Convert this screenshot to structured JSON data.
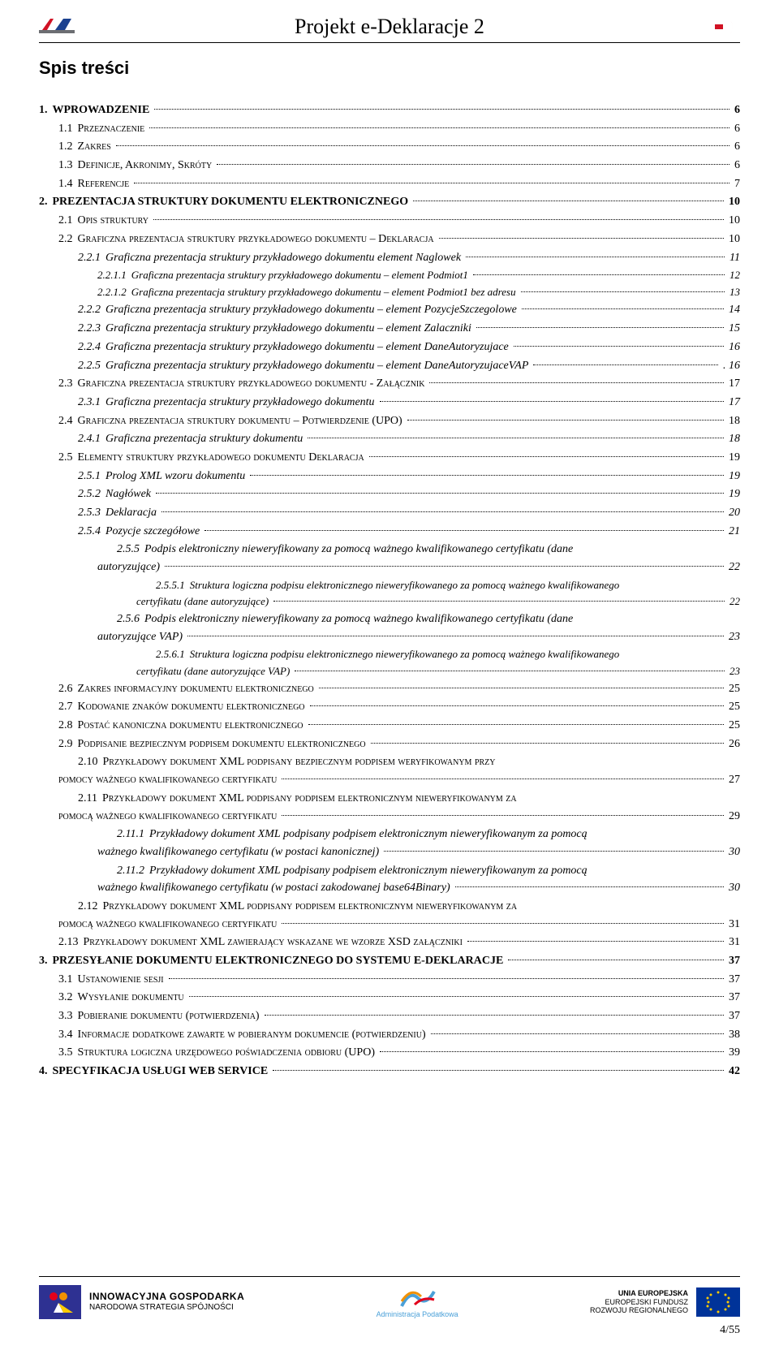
{
  "header": {
    "title": "Projekt e-Deklaracje 2",
    "logo_left_colors": [
      "#d11224",
      "#6c6e72",
      "#1b418f"
    ],
    "logo_right_colors": [
      "#d11224",
      "#ffffff"
    ]
  },
  "toc_heading": "Spis treści",
  "footer": {
    "page": "4/55",
    "ig": {
      "l1": "INNOWACYJNA GOSPODARKA",
      "l2": "NARODOWA STRATEGIA SPÓJNOŚCI"
    },
    "center_caption": "Administracja Podatkowa",
    "eu": {
      "l1": "UNIA EUROPEJSKA",
      "l2": "EUROPEJSKI FUNDUSZ",
      "l3": "ROZWOJU REGIONALNEGO"
    },
    "ig_colors": [
      "#e3001b",
      "#f29100",
      "#2e3192",
      "#ffffff"
    ],
    "eu_flag_bg": "#003399",
    "eu_flag_star": "#ffcc00",
    "center_colors": [
      "#4aa0d8",
      "#f29100",
      "#e3001b"
    ]
  },
  "toc": [
    {
      "lvl": 1,
      "num": "1.",
      "txt": "WPROWADZENIE",
      "pg": "6"
    },
    {
      "lvl": 2,
      "num": "1.1",
      "txt": "Przeznaczenie",
      "pg": "6"
    },
    {
      "lvl": 2,
      "num": "1.2",
      "txt": "Zakres",
      "pg": "6"
    },
    {
      "lvl": 2,
      "num": "1.3",
      "txt": "Definicje, Akronimy, Skróty",
      "pg": "6"
    },
    {
      "lvl": 2,
      "num": "1.4",
      "txt": "Referencje",
      "pg": "7"
    },
    {
      "lvl": 1,
      "num": "2.",
      "txt": "PREZENTACJA STRUKTURY DOKUMENTU ELEKTRONICZNEGO",
      "pg": "10"
    },
    {
      "lvl": 2,
      "num": "2.1",
      "txt": "Opis struktury",
      "pg": "10"
    },
    {
      "lvl": 2,
      "num": "2.2",
      "txt": "Graficzna prezentacja struktury przykładowego dokumentu – Deklaracja",
      "pg": "10"
    },
    {
      "lvl": 3,
      "num": "2.2.1",
      "txt": "Graficzna prezentacja struktury przykładowego dokumentu element Naglowek",
      "pg": "11"
    },
    {
      "lvl": 4,
      "num": "2.2.1.1",
      "txt": "Graficzna prezentacja struktury przykładowego dokumentu – element Podmiot1",
      "pg": "12"
    },
    {
      "lvl": 4,
      "num": "2.2.1.2",
      "txt": "Graficzna prezentacja struktury przykładowego dokumentu – element Podmiot1 bez adresu",
      "pg": "13"
    },
    {
      "lvl": 3,
      "num": "2.2.2",
      "txt": "Graficzna prezentacja struktury przykładowego dokumentu – element PozycjeSzczegolowe",
      "pg": "14"
    },
    {
      "lvl": 3,
      "num": "2.2.3",
      "txt": "Graficzna prezentacja struktury przykładowego dokumentu – element Zalaczniki",
      "pg": "15"
    },
    {
      "lvl": 3,
      "num": "2.2.4",
      "txt": "Graficzna prezentacja struktury przykładowego dokumentu – element DaneAutoryzujace",
      "pg": "16"
    },
    {
      "lvl": 3,
      "num": "2.2.5",
      "txt": "Graficzna prezentacja struktury przykładowego dokumentu – element DaneAutoryzujaceVAP",
      "pg": ". 16"
    },
    {
      "lvl": 2,
      "num": "2.3",
      "txt": "Graficzna prezentacja struktury przykładowego dokumentu - Załącznik",
      "pg": "17"
    },
    {
      "lvl": 3,
      "num": "2.3.1",
      "txt": "Graficzna prezentacja struktury przykładowego dokumentu",
      "pg": "17"
    },
    {
      "lvl": 2,
      "num": "2.4",
      "txt": "Graficzna prezentacja struktury dokumentu – Potwierdzenie (UPO)",
      "pg": "18"
    },
    {
      "lvl": 3,
      "num": "2.4.1",
      "txt": "Graficzna prezentacja struktury dokumentu",
      "pg": "18"
    },
    {
      "lvl": 2,
      "num": "2.5",
      "txt": "Elementy struktury przykładowego dokumentu Deklaracja",
      "pg": "19"
    },
    {
      "lvl": 3,
      "num": "2.5.1",
      "txt": "Prolog XML wzoru dokumentu",
      "pg": "19"
    },
    {
      "lvl": 3,
      "num": "2.5.2",
      "txt": "Nagłówek",
      "pg": "19"
    },
    {
      "lvl": 3,
      "num": "2.5.3",
      "txt": "Deklaracja",
      "pg": "20"
    },
    {
      "lvl": 3,
      "num": "2.5.4",
      "txt": "Pozycje szczegółowe",
      "pg": "21"
    },
    {
      "lvl": 3,
      "num": "2.5.5",
      "txt": "Podpis elektroniczny nieweryfikowany za pomocą ważnego kwalifikowanego certyfikatu (dane",
      "wrap_tail": "autoryzujące)",
      "pg": "22"
    },
    {
      "lvl": 4,
      "num": "2.5.5.1",
      "txt": "Struktura logiczna podpisu elektronicznego nieweryfikowanego za pomocą ważnego kwalifikowanego",
      "wrap_tail": "certyfikatu (dane autoryzujące)",
      "pg": "22"
    },
    {
      "lvl": 3,
      "num": "2.5.6",
      "txt": "Podpis elektroniczny nieweryfikowany za pomocą ważnego kwalifikowanego certyfikatu (dane",
      "wrap_tail": "autoryzujące VAP)",
      "pg": "23"
    },
    {
      "lvl": 4,
      "num": "2.5.6.1",
      "txt": "Struktura logiczna podpisu elektronicznego nieweryfikowanego za pomocą ważnego kwalifikowanego",
      "wrap_tail": "certyfikatu (dane autoryzujące VAP)",
      "pg": "23"
    },
    {
      "lvl": 2,
      "num": "2.6",
      "txt": "Zakres informacyjny dokumentu elektronicznego",
      "pg": "25"
    },
    {
      "lvl": 2,
      "num": "2.7",
      "txt": "Kodowanie znaków dokumentu elektronicznego",
      "pg": "25"
    },
    {
      "lvl": 2,
      "num": "2.8",
      "txt": "Postać kanoniczna dokumentu elektronicznego",
      "pg": "25"
    },
    {
      "lvl": 2,
      "num": "2.9",
      "txt": "Podpisanie bezpiecznym podpisem dokumentu elektronicznego",
      "pg": "26"
    },
    {
      "lvl": 2,
      "num": "2.10",
      "txt": "Przykładowy dokument XML podpisany bezpiecznym podpisem weryfikowanym przy",
      "wrap_tail": "pomocy ważnego kwalifikowanego certyfikatu",
      "pg": "27"
    },
    {
      "lvl": 2,
      "num": "2.11",
      "txt": "Przykładowy dokument XML podpisany podpisem elektronicznym nieweryfikowanym za",
      "wrap_tail": "pomocą ważnego kwalifikowanego certyfikatu",
      "pg": "29"
    },
    {
      "lvl": 3,
      "num": "2.11.1",
      "txt": "Przykładowy dokument XML podpisany podpisem elektronicznym nieweryfikowanym za pomocą",
      "wrap_tail": "ważnego kwalifikowanego certyfikatu (w postaci kanonicznej)",
      "pg": "30"
    },
    {
      "lvl": 3,
      "num": "2.11.2",
      "txt": "Przykładowy dokument XML podpisany podpisem elektronicznym nieweryfikowanym za pomocą",
      "wrap_tail": "ważnego kwalifikowanego certyfikatu (w postaci zakodowanej base64Binary)",
      "pg": "30"
    },
    {
      "lvl": 2,
      "num": "2.12",
      "txt": "Przykładowy dokument XML podpisany podpisem elektronicznym nieweryfikowanym za",
      "wrap_tail": "pomocą ważnego kwalifikowanego certyfikatu",
      "pg": "31"
    },
    {
      "lvl": 2,
      "num": "2.13",
      "txt": "Przykładowy dokument XML zawierający wskazane we wzorze XSD załączniki",
      "pg": "31"
    },
    {
      "lvl": 1,
      "num": "3.",
      "txt": "PRZESYŁANIE DOKUMENTU ELEKTRONICZNEGO DO SYSTEMU E-DEKLARACJE",
      "pg": "37"
    },
    {
      "lvl": 2,
      "num": "3.1",
      "txt": "Ustanowienie sesji",
      "pg": "37"
    },
    {
      "lvl": 2,
      "num": "3.2",
      "txt": "Wysyłanie dokumentu",
      "pg": "37"
    },
    {
      "lvl": 2,
      "num": "3.3",
      "txt": "Pobieranie dokumentu (potwierdzenia)",
      "pg": "37"
    },
    {
      "lvl": 2,
      "num": "3.4",
      "txt": "Informacje dodatkowe zawarte w pobieranym dokumencie (potwierdzeniu)",
      "pg": "38"
    },
    {
      "lvl": 2,
      "num": "3.5",
      "txt": "Struktura logiczna urzędowego poświadczenia odbioru (UPO)",
      "pg": "39"
    },
    {
      "lvl": 1,
      "num": "4.",
      "txt": "SPECYFIKACJA USŁUGI WEB SERVICE",
      "pg": "42"
    }
  ]
}
